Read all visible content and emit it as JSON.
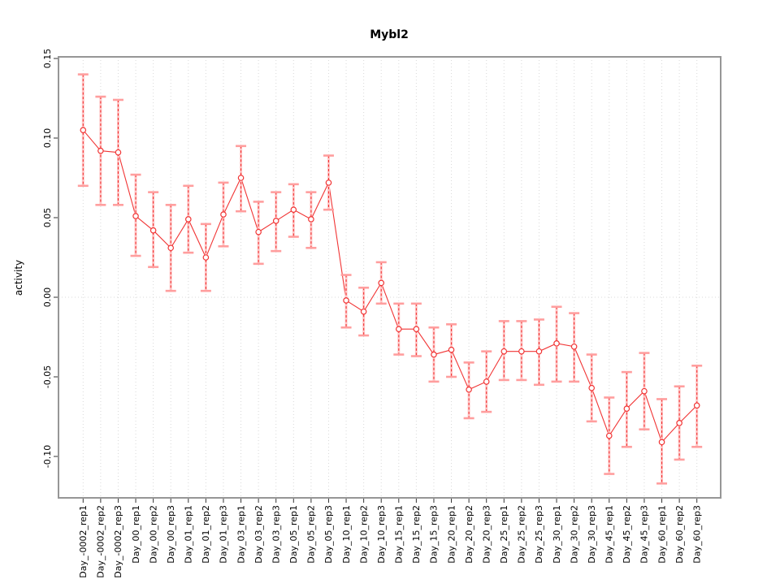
{
  "title": "Mybl2",
  "chart_data": {
    "type": "line",
    "title": "Mybl2",
    "xlabel": "",
    "ylabel": "activity",
    "ylim": [
      -0.125,
      0.155
    ],
    "yticks": [
      0.15,
      0.1,
      0.05,
      0.0,
      -0.05,
      -0.1
    ],
    "grid": {
      "vertical": "dotted line at every category",
      "horizontal": "dotted line at y=0 only"
    },
    "legend": "none",
    "marker": "open-circle",
    "error_bars": true,
    "categories": [
      "Day_-0002_rep1",
      "Day_-0002_rep2",
      "Day_-0002_rep3",
      "Day_00_rep1",
      "Day_00_rep2",
      "Day_00_rep3",
      "Day_01_rep1",
      "Day_01_rep2",
      "Day_01_rep3",
      "Day_03_rep1",
      "Day_03_rep2",
      "Day_03_rep3",
      "Day_05_rep1",
      "Day_05_rep2",
      "Day_05_rep3",
      "Day_10_rep1",
      "Day_10_rep2",
      "Day_10_rep3",
      "Day_15_rep1",
      "Day_15_rep2",
      "Day_15_rep3",
      "Day_20_rep1",
      "Day_20_rep2",
      "Day_20_rep3",
      "Day_25_rep1",
      "Day_25_rep2",
      "Day_25_rep3",
      "Day_30_rep1",
      "Day_30_rep2",
      "Day_30_rep3",
      "Day_45_rep1",
      "Day_45_rep2",
      "Day_45_rep3",
      "Day_60_rep1",
      "Day_60_rep2",
      "Day_60_rep3"
    ],
    "series": [
      {
        "name": "activity",
        "values": [
          0.105,
          0.092,
          0.091,
          0.051,
          0.042,
          0.031,
          0.049,
          0.025,
          0.052,
          0.075,
          0.041,
          0.048,
          0.055,
          0.049,
          0.072,
          -0.002,
          -0.009,
          0.009,
          -0.02,
          -0.02,
          -0.036,
          -0.033,
          -0.058,
          -0.053,
          -0.034,
          -0.034,
          -0.034,
          -0.029,
          -0.031,
          -0.057,
          -0.087,
          -0.07,
          -0.059,
          -0.091,
          -0.079,
          -0.068
        ],
        "upper": [
          0.14,
          0.126,
          0.124,
          0.077,
          0.066,
          0.058,
          0.07,
          0.046,
          0.072,
          0.095,
          0.06,
          0.066,
          0.071,
          0.066,
          0.089,
          0.014,
          0.006,
          0.022,
          -0.004,
          -0.004,
          -0.019,
          -0.017,
          -0.041,
          -0.034,
          -0.015,
          -0.015,
          -0.014,
          -0.006,
          -0.01,
          -0.036,
          -0.063,
          -0.047,
          -0.035,
          -0.064,
          -0.056,
          -0.043
        ],
        "lower": [
          0.07,
          0.058,
          0.058,
          0.026,
          0.019,
          0.004,
          0.028,
          0.004,
          0.032,
          0.054,
          0.021,
          0.029,
          0.038,
          0.031,
          0.055,
          -0.019,
          -0.024,
          -0.004,
          -0.036,
          -0.037,
          -0.053,
          -0.05,
          -0.076,
          -0.072,
          -0.052,
          -0.052,
          -0.055,
          -0.053,
          -0.053,
          -0.078,
          -0.111,
          -0.094,
          -0.083,
          -0.117,
          -0.102,
          -0.094
        ]
      }
    ],
    "colors": {
      "line": "#f13434",
      "point": "#f13434",
      "error_line": "#f13434",
      "error_fill": "#ffc8c8",
      "error_cap": "#ff9e9e",
      "gridline": "#d9d9d9",
      "frame": "#969696",
      "tick": "#333333",
      "background": "#ffffff"
    }
  }
}
